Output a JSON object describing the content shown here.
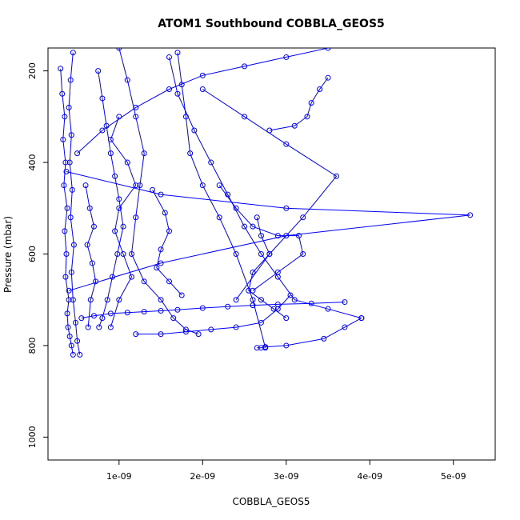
{
  "chart_data": {
    "type": "line",
    "title": "ATOM1 Southbound COBBLA_GEOS5",
    "xlabel": "COBBLA_GEOS5",
    "ylabel": "Pressure (mbar)",
    "xlim": [
      1.5e-10,
      5.5e-09
    ],
    "ylim": [
      1050,
      150
    ],
    "y_reversed": true,
    "x_ticks": [
      1e-09,
      2e-09,
      3e-09,
      4e-09,
      5e-09
    ],
    "x_tick_labels": [
      "1e-09",
      "2e-09",
      "3e-09",
      "4e-09",
      "5e-09"
    ],
    "y_ticks": [
      200,
      400,
      600,
      800,
      1000
    ],
    "y_tick_labels": [
      "200",
      "400",
      "600",
      "800",
      "1000"
    ],
    "grid": false,
    "legend": "none",
    "color": "#0000ff",
    "marker": "open-circle",
    "series": [
      {
        "x": [
          3e-10,
          3.2e-10,
          3.5e-10,
          3.3e-10,
          3.6e-10,
          3.4e-10,
          3.8e-10,
          3.5e-10,
          3.7e-10,
          3.6e-10,
          4e-10,
          3.8e-10,
          3.9e-10,
          4.1e-10,
          4.3e-10,
          4.5e-10
        ],
        "y": [
          195,
          250,
          300,
          350,
          400,
          450,
          500,
          550,
          600,
          650,
          700,
          730,
          760,
          780,
          800,
          820
        ]
      },
      {
        "x": [
          4.5e-10,
          4.2e-10,
          4e-10,
          4.3e-10,
          4.1e-10,
          4.4e-10,
          4.2e-10,
          4.6e-10,
          4.3e-10,
          4.5e-10,
          4.8e-10,
          5e-10,
          5.3e-10
        ],
        "y": [
          160,
          220,
          280,
          340,
          400,
          460,
          520,
          580,
          640,
          700,
          750,
          790,
          820
        ]
      },
      {
        "x": [
          7.5e-10,
          8e-10,
          8.5e-10,
          9e-10,
          9.5e-10,
          1e-09,
          1.05e-09,
          9.8e-10,
          9.2e-10,
          8.6e-10,
          8e-10,
          7.6e-10
        ],
        "y": [
          200,
          260,
          320,
          380,
          430,
          480,
          540,
          600,
          650,
          700,
          740,
          760
        ]
      },
      {
        "x": [
          1e-09,
          1.1e-09,
          1.2e-09,
          1.3e-09,
          1.25e-09,
          1.2e-09,
          1.15e-09,
          1.3e-09,
          1.5e-09,
          1.65e-09,
          1.8e-09,
          1.95e-09
        ],
        "y": [
          150,
          220,
          300,
          380,
          450,
          520,
          600,
          660,
          700,
          740,
          765,
          775
        ]
      },
      {
        "x": [
          1.7e-09,
          1.75e-09,
          1.8e-09,
          1.85e-09,
          2e-09,
          2.2e-09,
          2.4e-09,
          2.6e-09,
          2.75e-09
        ],
        "y": [
          160,
          230,
          300,
          380,
          450,
          520,
          600,
          700,
          805
        ]
      },
      {
        "x": [
          1.6e-09,
          1.7e-09,
          1.9e-09,
          2.1e-09,
          2.3e-09,
          2.5e-09,
          2.7e-09,
          2.9e-09,
          3.1e-09,
          3.5e-09,
          3.9e-09
        ],
        "y": [
          170,
          250,
          330,
          400,
          470,
          540,
          600,
          650,
          700,
          720,
          740
        ]
      },
      {
        "x": [
          3.7e-10,
          1.5e-09,
          3e-09,
          5.2e-09,
          3e-09,
          1.5e-09,
          4e-10
        ],
        "y": [
          420,
          470,
          500,
          515,
          560,
          620,
          680
        ]
      },
      {
        "x": [
          2e-09,
          2.5e-09,
          3e-09,
          3.6e-09,
          3.2e-09,
          2.8e-09,
          2.4e-09
        ],
        "y": [
          240,
          300,
          360,
          430,
          520,
          600,
          700
        ]
      },
      {
        "x": [
          1.2e-09,
          1.5e-09,
          1.8e-09,
          2.1e-09,
          2.4e-09,
          2.7e-09,
          2.9e-09,
          3.05e-09
        ],
        "y": [
          775,
          775,
          770,
          765,
          760,
          750,
          720,
          690
        ]
      },
      {
        "x": [
          2.65e-09,
          2.7e-09,
          2.75e-09,
          3e-09,
          3.45e-09,
          3.7e-09,
          3.9e-09
        ],
        "y": [
          805,
          805,
          803,
          800,
          785,
          760,
          740
        ]
      },
      {
        "x": [
          5.5e-10,
          7e-10,
          9e-10,
          1.1e-09,
          1.3e-09,
          1.5e-09,
          1.7e-09,
          2e-09,
          2.3e-09,
          2.6e-09,
          2.9e-09,
          3.3e-09,
          3.7e-09
        ],
        "y": [
          740,
          735,
          730,
          728,
          726,
          724,
          722,
          718,
          715,
          712,
          710,
          708,
          705
        ]
      },
      {
        "x": [
          3.5e-09,
          3e-09,
          2.5e-09,
          2e-09,
          1.6e-09,
          1.2e-09,
          8e-10,
          5e-10
        ],
        "y": [
          150,
          170,
          190,
          210,
          240,
          280,
          330,
          380
        ]
      },
      {
        "x": [
          2.8e-09,
          3.1e-09,
          3.25e-09,
          3.3e-09,
          3.4e-09,
          3.5e-09
        ],
        "y": [
          330,
          320,
          300,
          270,
          240,
          215
        ]
      },
      {
        "x": [
          1e-09,
          9e-10,
          1.1e-09,
          1.2e-09,
          1e-09,
          9.5e-10,
          1.05e-09,
          1.15e-09,
          1e-09,
          9e-10
        ],
        "y": [
          300,
          350,
          400,
          450,
          500,
          550,
          600,
          650,
          700,
          760
        ]
      },
      {
        "x": [
          6e-10,
          6.5e-10,
          7e-10,
          6.2e-10,
          6.8e-10,
          7.2e-10,
          6.6e-10,
          6.3e-10
        ],
        "y": [
          450,
          500,
          540,
          580,
          620,
          660,
          700,
          760
        ]
      },
      {
        "x": [
          2.2e-09,
          2.4e-09,
          2.6e-09,
          2.9e-09,
          3.15e-09,
          3.2e-09,
          2.9e-09,
          2.6e-09
        ],
        "y": [
          450,
          500,
          540,
          560,
          560,
          600,
          640,
          680
        ]
      },
      {
        "x": [
          1.4e-09,
          1.55e-09,
          1.6e-09,
          1.5e-09,
          1.45e-09,
          1.6e-09,
          1.75e-09
        ],
        "y": [
          460,
          510,
          550,
          590,
          630,
          660,
          690
        ]
      },
      {
        "x": [
          2.65e-09,
          2.7e-09,
          2.8e-09,
          2.6e-09,
          2.55e-09,
          2.7e-09,
          2.85e-09,
          3e-09
        ],
        "y": [
          520,
          560,
          600,
          640,
          680,
          700,
          720,
          740
        ]
      }
    ]
  }
}
